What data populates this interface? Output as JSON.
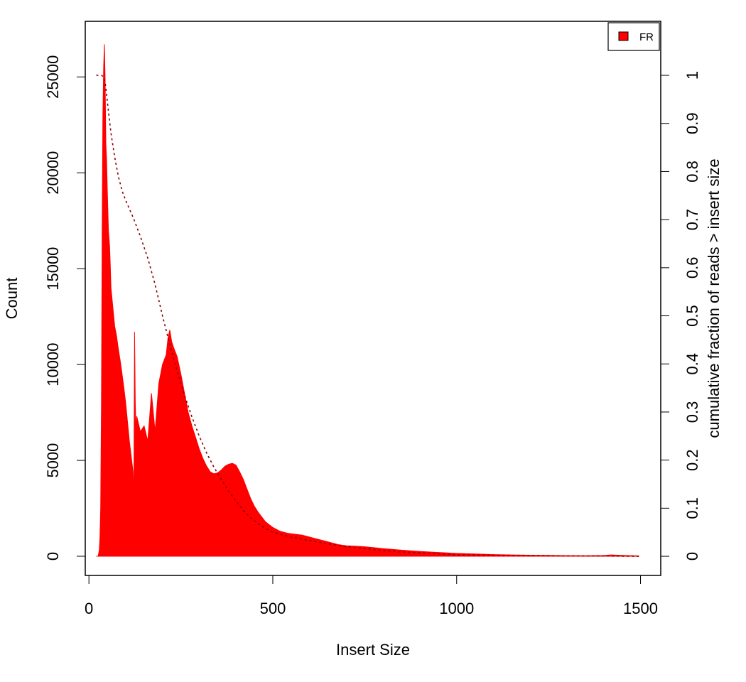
{
  "chart_data": {
    "type": "area",
    "xlabel": "Insert Size",
    "ylabel": "Count",
    "y2label": "cumulative fraction of reads > insert size",
    "xlim": [
      -10,
      1555
    ],
    "ylim": [
      -1000,
      27900
    ],
    "y2lim": [
      -0.0398,
      1.1123
    ],
    "xticks": [
      "0",
      "500",
      "1000",
      "1500"
    ],
    "yticks": [
      "0",
      "5000",
      "10000",
      "15000",
      "20000",
      "25000"
    ],
    "y2ticks": [
      "0",
      "0.1",
      "0.2",
      "0.3",
      "0.4",
      "0.5",
      "0.6",
      "0.7",
      "0.8",
      "0.9",
      "1"
    ],
    "grid": false,
    "legend": {
      "position": "top-right",
      "entries": [
        "FR"
      ]
    },
    "colors": {
      "histogram": "#ff0000",
      "cumulative": "#8b0000",
      "axes": "#000000"
    },
    "series": [
      {
        "name": "FR",
        "kind": "histogram",
        "x": [
          20,
          25,
          28,
          30,
          32,
          34,
          36,
          38,
          40,
          42,
          44,
          46,
          48,
          50,
          53,
          56,
          58,
          60,
          65,
          70,
          75,
          80,
          85,
          90,
          95,
          100,
          105,
          110,
          115,
          120,
          122,
          124,
          126,
          128,
          130,
          140,
          150,
          160,
          170,
          180,
          190,
          200,
          210,
          215,
          220,
          225,
          230,
          240,
          250,
          260,
          270,
          280,
          290,
          300,
          310,
          320,
          330,
          340,
          350,
          360,
          370,
          380,
          390,
          400,
          410,
          420,
          430,
          440,
          450,
          460,
          470,
          480,
          490,
          500,
          520,
          540,
          560,
          580,
          600,
          620,
          640,
          660,
          680,
          700,
          720,
          740,
          760,
          780,
          800,
          850,
          900,
          950,
          1000,
          1050,
          1100,
          1150,
          1200,
          1250,
          1300,
          1350,
          1400,
          1420,
          1450,
          1495
        ],
        "y": [
          0,
          0,
          300,
          1000,
          2500,
          8000,
          17000,
          23000,
          25500,
          26700,
          25000,
          21500,
          20700,
          19000,
          17000,
          16200,
          15200,
          14000,
          13000,
          12000,
          11500,
          10800,
          10200,
          9500,
          8800,
          8000,
          7000,
          6000,
          5200,
          4400,
          2200,
          11700,
          8000,
          6600,
          7300,
          6500,
          6800,
          6000,
          8500,
          6500,
          9000,
          10000,
          10500,
          11400,
          11800,
          11200,
          10900,
          10400,
          9500,
          8500,
          7500,
          6800,
          6200,
          5600,
          5100,
          4700,
          4400,
          4300,
          4350,
          4500,
          4700,
          4800,
          4850,
          4750,
          4400,
          4000,
          3500,
          3000,
          2600,
          2300,
          2050,
          1800,
          1650,
          1500,
          1300,
          1200,
          1150,
          1100,
          1000,
          900,
          800,
          700,
          600,
          550,
          530,
          510,
          480,
          440,
          400,
          320,
          250,
          200,
          150,
          120,
          90,
          70,
          55,
          45,
          35,
          30,
          40,
          70,
          50,
          20
        ]
      },
      {
        "name": "",
        "kind": "cumulative",
        "x": [
          20,
          35,
          40,
          45,
          50,
          60,
          70,
          80,
          90,
          100,
          120,
          140,
          160,
          180,
          200,
          220,
          240,
          260,
          280,
          300,
          320,
          340,
          360,
          380,
          400,
          420,
          440,
          460,
          480,
          500,
          550,
          600,
          650,
          700,
          750,
          800,
          850,
          900,
          950,
          1000,
          1100,
          1200,
          1300,
          1400,
          1500
        ],
        "y": [
          1.0,
          1.0,
          0.995,
          0.98,
          0.945,
          0.88,
          0.83,
          0.79,
          0.76,
          0.74,
          0.705,
          0.665,
          0.62,
          0.565,
          0.5,
          0.44,
          0.385,
          0.335,
          0.29,
          0.25,
          0.215,
          0.185,
          0.16,
          0.135,
          0.115,
          0.095,
          0.08,
          0.068,
          0.058,
          0.05,
          0.04,
          0.033,
          0.026,
          0.02,
          0.016,
          0.012,
          0.009,
          0.007,
          0.005,
          0.003,
          0.002,
          0.0015,
          0.001,
          0.0005,
          0.0
        ]
      }
    ]
  }
}
